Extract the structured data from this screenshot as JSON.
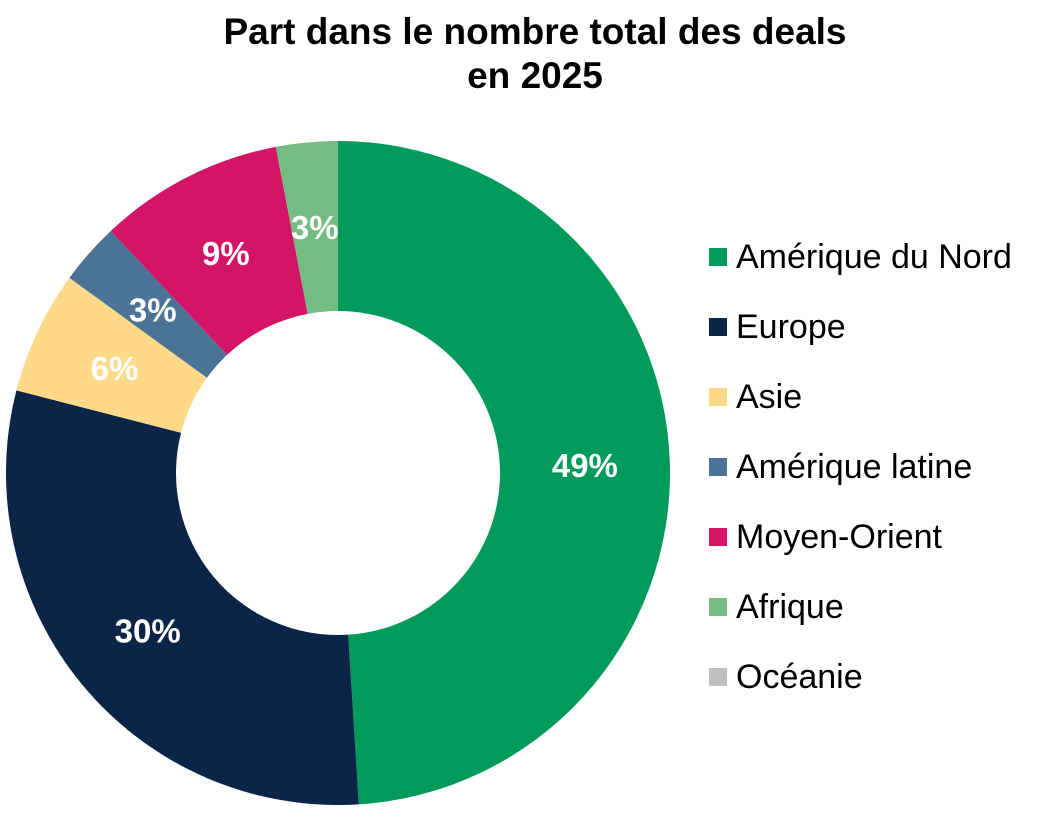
{
  "chart_data": {
    "type": "donut",
    "title": "Part dans le nombre total des deals",
    "subtitle": "en 2025",
    "unit": "%",
    "legend_position": "right",
    "categories": [
      "Amérique du Nord",
      "Europe",
      "Asie",
      "Amérique latine",
      "Moyen-Orient",
      "Afrique",
      "Océanie"
    ],
    "values": [
      49,
      30,
      6,
      3,
      9,
      3,
      0
    ],
    "labels": [
      "49%",
      "30%",
      "6%",
      "3%",
      "9%",
      "3%",
      ""
    ],
    "colors": [
      "#009A5A",
      "#0B2548",
      "#FFD98A",
      "#4A7396",
      "#D41467",
      "#74BC82",
      "#BFBFBF"
    ]
  }
}
